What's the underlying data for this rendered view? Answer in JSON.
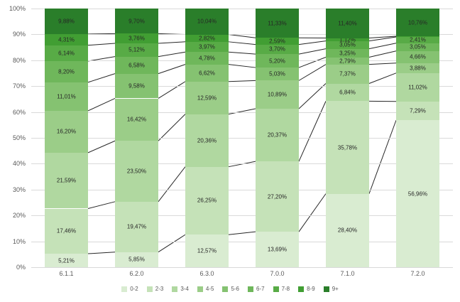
{
  "chart_data": {
    "type": "bar",
    "stacked": true,
    "percent_stacked": true,
    "title": "",
    "xlabel": "",
    "ylabel": "",
    "ylim": [
      0,
      100
    ],
    "grid": true,
    "legend_position": "bottom",
    "connector_lines": true,
    "connector_color": "#262626",
    "gridline_color": "#d9d9d9",
    "categories": [
      "6.1.1",
      "6.2.0",
      "6.3.0",
      "7.0.0",
      "7.1.0",
      "7.2.0"
    ],
    "y_ticks": [
      "100%",
      "90%",
      "80%",
      "70%",
      "60%",
      "50%",
      "40%",
      "30%",
      "20%",
      "10%",
      "0%"
    ],
    "series": [
      {
        "name": "0-2",
        "color": "#d9ecd1",
        "values": [
          5.21,
          5.85,
          12.57,
          13.69,
          28.4,
          56.96
        ],
        "labels": [
          "5,21%",
          "5,85%",
          "12,57%",
          "13,69%",
          "28,40%",
          "56,96%"
        ]
      },
      {
        "name": "2-3",
        "color": "#c5e2b8",
        "values": [
          17.46,
          19.47,
          26.25,
          27.2,
          35.78,
          7.29
        ],
        "labels": [
          "17,46%",
          "19,47%",
          "26,25%",
          "27,20%",
          "35,78%",
          "7,29%"
        ]
      },
      {
        "name": "3-4",
        "color": "#b0d8a0",
        "values": [
          21.59,
          23.5,
          20.36,
          20.37,
          6.84,
          11.02
        ],
        "labels": [
          "21,59%",
          "23,50%",
          "20,36%",
          "20,37%",
          "6,84%",
          "11,02%"
        ]
      },
      {
        "name": "4-5",
        "color": "#9bcd88",
        "values": [
          16.2,
          16.42,
          12.59,
          10.89,
          7.37,
          3.88
        ],
        "labels": [
          "16,20%",
          "16,42%",
          "12,59%",
          "10,89%",
          "7,37%",
          "3,88%"
        ]
      },
      {
        "name": "5-6",
        "color": "#85c271",
        "values": [
          11.01,
          9.58,
          6.62,
          5.03,
          2.79,
          4.66
        ],
        "labels": [
          "11,01%",
          "9,58%",
          "6,62%",
          "5,03%",
          "2,79%",
          "4,66%"
        ]
      },
      {
        "name": "6-7",
        "color": "#6fb75b",
        "values": [
          8.2,
          6.58,
          4.78,
          5.2,
          3.25,
          3.05
        ],
        "labels": [
          "8,20%",
          "6,58%",
          "4,78%",
          "5,20%",
          "3,25%",
          "3,05%"
        ]
      },
      {
        "name": "7-8",
        "color": "#58ab46",
        "values": [
          6.14,
          5.12,
          3.97,
          3.7,
          3.05,
          2.41
        ],
        "labels": [
          "6,14%",
          "5,12%",
          "3,97%",
          "3,70%",
          "3,05%",
          "2,41%"
        ]
      },
      {
        "name": "8-9",
        "color": "#419e33",
        "values": [
          4.31,
          3.76,
          2.82,
          2.59,
          1.12,
          0.25
        ],
        "labels": [
          "4,31%",
          "3,76%",
          "2,82%",
          "2,59%",
          "1,12%",
          ""
        ]
      },
      {
        "name": "9+",
        "color": "#2a7e2a",
        "values": [
          9.88,
          9.7,
          10.04,
          11.33,
          11.4,
          10.76
        ],
        "labels": [
          "9,88%",
          "9,70%",
          "10,04%",
          "11,33%",
          "11,40%",
          "10,76%"
        ]
      }
    ]
  }
}
